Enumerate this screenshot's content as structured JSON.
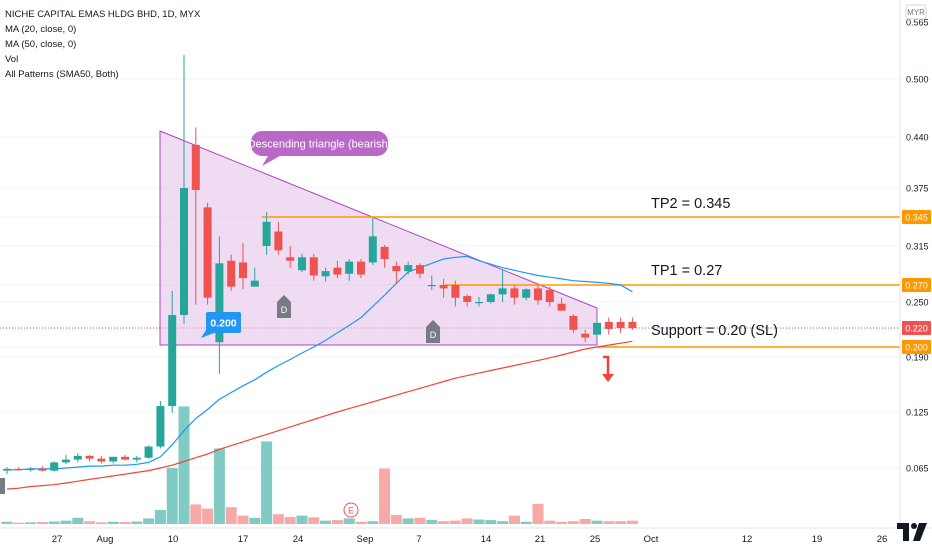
{
  "legend": {
    "title": "NICHE CAPITAL EMAS HLDG BHD, 1D, MYX",
    "ma20": "MA (20, close, 0)",
    "ma50": "MA (50, close, 0)",
    "vol": "Vol",
    "patterns": "All Patterns (SMA50, Both)"
  },
  "currency": "MYR",
  "colors": {
    "up": "#26a69a",
    "down": "#ef5350",
    "up_vol": "#80cbc4",
    "down_vol": "#f7a9a7",
    "ma20": "#2196f3",
    "ma50": "#f44336",
    "triangle_fill": "#e1bee7",
    "triangle_line": "#ab47bc",
    "level_line": "#ff9800",
    "price_tag": "#ef5350",
    "callout": "#ba68c8",
    "arrow": "#f44336"
  },
  "chart_data": {
    "type": "candlestick",
    "price_axis_ticks": [
      "0.065",
      "0.125",
      "0.190",
      "0.200",
      "0.220",
      "0.250",
      "0.270",
      "0.315",
      "0.345",
      "0.375",
      "0.440",
      "0.500",
      "0.565"
    ],
    "x_axis_labels": [
      "27",
      "Aug",
      "10",
      "17",
      "24",
      "Sep",
      "7",
      "14",
      "21",
      "25",
      "Oct",
      "12",
      "19",
      "26"
    ],
    "current_price": "0.220",
    "annotations": {
      "callout": "Descending triangle (bearish)",
      "label_low": "0.200",
      "tp2": "TP2 = 0.345",
      "tp1": "TP1 = 0.27",
      "support": "Support = 0.20 (SL)",
      "tag_tp2": "0.345",
      "tag_tp1": "0.270",
      "tag_price": "0.220",
      "tag_support": "0.200",
      "pattern_marks": [
        "D",
        "D"
      ],
      "earnings_mark": "E"
    },
    "candles": [
      {
        "o": 0.062,
        "h": 0.066,
        "l": 0.058,
        "c": 0.064
      },
      {
        "o": 0.064,
        "h": 0.066,
        "l": 0.062,
        "c": 0.063
      },
      {
        "o": 0.063,
        "h": 0.066,
        "l": 0.061,
        "c": 0.064
      },
      {
        "o": 0.064,
        "h": 0.067,
        "l": 0.061,
        "c": 0.062
      },
      {
        "o": 0.062,
        "h": 0.072,
        "l": 0.061,
        "c": 0.071
      },
      {
        "o": 0.071,
        "h": 0.079,
        "l": 0.069,
        "c": 0.074
      },
      {
        "o": 0.074,
        "h": 0.081,
        "l": 0.071,
        "c": 0.078
      },
      {
        "o": 0.078,
        "h": 0.079,
        "l": 0.072,
        "c": 0.075
      },
      {
        "o": 0.075,
        "h": 0.078,
        "l": 0.07,
        "c": 0.072
      },
      {
        "o": 0.072,
        "h": 0.077,
        "l": 0.07,
        "c": 0.077
      },
      {
        "o": 0.077,
        "h": 0.079,
        "l": 0.073,
        "c": 0.074
      },
      {
        "o": 0.074,
        "h": 0.078,
        "l": 0.071,
        "c": 0.076
      },
      {
        "o": 0.076,
        "h": 0.089,
        "l": 0.075,
        "c": 0.088
      },
      {
        "o": 0.088,
        "h": 0.138,
        "l": 0.086,
        "c": 0.132
      },
      {
        "o": 0.132,
        "h": 0.263,
        "l": 0.124,
        "c": 0.235
      },
      {
        "o": 0.235,
        "h": 0.525,
        "l": 0.225,
        "c": 0.375
      },
      {
        "o": 0.43,
        "h": 0.45,
        "l": 0.247,
        "c": 0.373
      },
      {
        "o": 0.355,
        "h": 0.36,
        "l": 0.247,
        "c": 0.255
      },
      {
        "o": 0.205,
        "h": 0.325,
        "l": 0.17,
        "c": 0.295
      },
      {
        "o": 0.298,
        "h": 0.305,
        "l": 0.263,
        "c": 0.268
      },
      {
        "o": 0.296,
        "h": 0.318,
        "l": 0.265,
        "c": 0.278
      },
      {
        "o": 0.268,
        "h": 0.29,
        "l": 0.272,
        "c": 0.275
      },
      {
        "o": 0.315,
        "h": 0.35,
        "l": 0.305,
        "c": 0.34
      },
      {
        "o": 0.33,
        "h": 0.34,
        "l": 0.305,
        "c": 0.31
      },
      {
        "o": 0.302,
        "h": 0.315,
        "l": 0.29,
        "c": 0.298
      },
      {
        "o": 0.287,
        "h": 0.306,
        "l": 0.285,
        "c": 0.302
      },
      {
        "o": 0.302,
        "h": 0.306,
        "l": 0.275,
        "c": 0.281
      },
      {
        "o": 0.28,
        "h": 0.29,
        "l": 0.274,
        "c": 0.286
      },
      {
        "o": 0.29,
        "h": 0.298,
        "l": 0.278,
        "c": 0.282
      },
      {
        "o": 0.283,
        "h": 0.3,
        "l": 0.275,
        "c": 0.297
      },
      {
        "o": 0.297,
        "h": 0.3,
        "l": 0.278,
        "c": 0.282
      },
      {
        "o": 0.296,
        "h": 0.344,
        "l": 0.293,
        "c": 0.325
      },
      {
        "o": 0.314,
        "h": 0.316,
        "l": 0.29,
        "c": 0.3
      },
      {
        "o": 0.292,
        "h": 0.297,
        "l": 0.272,
        "c": 0.286
      },
      {
        "o": 0.286,
        "h": 0.297,
        "l": 0.282,
        "c": 0.293
      },
      {
        "o": 0.293,
        "h": 0.295,
        "l": 0.278,
        "c": 0.283
      },
      {
        "o": 0.27,
        "h": 0.281,
        "l": 0.264,
        "c": 0.27
      },
      {
        "o": 0.27,
        "h": 0.277,
        "l": 0.255,
        "c": 0.266
      },
      {
        "o": 0.27,
        "h": 0.275,
        "l": 0.245,
        "c": 0.255
      },
      {
        "o": 0.257,
        "h": 0.259,
        "l": 0.245,
        "c": 0.25
      },
      {
        "o": 0.25,
        "h": 0.256,
        "l": 0.245,
        "c": 0.25
      },
      {
        "o": 0.25,
        "h": 0.26,
        "l": 0.248,
        "c": 0.259
      },
      {
        "o": 0.259,
        "h": 0.288,
        "l": 0.25,
        "c": 0.266
      },
      {
        "o": 0.266,
        "h": 0.27,
        "l": 0.247,
        "c": 0.255
      },
      {
        "o": 0.255,
        "h": 0.266,
        "l": 0.252,
        "c": 0.265
      },
      {
        "o": 0.266,
        "h": 0.27,
        "l": 0.247,
        "c": 0.252
      },
      {
        "o": 0.264,
        "h": 0.268,
        "l": 0.245,
        "c": 0.25
      },
      {
        "o": 0.248,
        "h": 0.255,
        "l": 0.24,
        "c": 0.24
      },
      {
        "o": 0.234,
        "h": 0.236,
        "l": 0.215,
        "c": 0.218
      },
      {
        "o": 0.214,
        "h": 0.218,
        "l": 0.205,
        "c": 0.21
      },
      {
        "o": 0.213,
        "h": 0.232,
        "l": 0.208,
        "c": 0.226
      },
      {
        "o": 0.227,
        "h": 0.232,
        "l": 0.213,
        "c": 0.219
      },
      {
        "o": 0.227,
        "h": 0.232,
        "l": 0.215,
        "c": 0.22
      },
      {
        "o": 0.227,
        "h": 0.232,
        "l": 0.218,
        "c": 0.22
      }
    ],
    "volume": [
      0.08,
      0.05,
      0.06,
      0.07,
      0.09,
      0.12,
      0.22,
      0.1,
      0.06,
      0.08,
      0.07,
      0.09,
      0.2,
      0.5,
      2.0,
      4.2,
      0.7,
      0.55,
      2.7,
      0.6,
      0.3,
      0.22,
      2.95,
      0.35,
      0.25,
      0.3,
      0.24,
      0.12,
      0.14,
      0.2,
      0.08,
      0.1,
      1.98,
      0.32,
      0.2,
      0.22,
      0.15,
      0.1,
      0.12,
      0.2,
      0.16,
      0.14,
      0.1,
      0.3,
      0.08,
      0.72,
      0.12,
      0.08,
      0.1,
      0.18,
      0.12,
      0.1,
      0.1,
      0.12
    ],
    "ma20": [
      0.063,
      0.063,
      0.064,
      0.064,
      0.064,
      0.065,
      0.066,
      0.067,
      0.067,
      0.068,
      0.068,
      0.069,
      0.071,
      0.077,
      0.09,
      0.105,
      0.118,
      0.128,
      0.14,
      0.148,
      0.156,
      0.163,
      0.172,
      0.18,
      0.187,
      0.194,
      0.2,
      0.207,
      0.215,
      0.223,
      0.232,
      0.245,
      0.258,
      0.272,
      0.285,
      0.29,
      0.295,
      0.3,
      0.302,
      0.303,
      0.298,
      0.294,
      0.29,
      0.287,
      0.284,
      0.281,
      0.279,
      0.277,
      0.275,
      0.274,
      0.273,
      0.272,
      0.27,
      0.262
    ],
    "ma50": [
      0.041,
      0.042,
      0.044,
      0.045,
      0.046,
      0.048,
      0.05,
      0.052,
      0.054,
      0.056,
      0.058,
      0.06,
      0.062,
      0.065,
      0.068,
      0.072,
      0.076,
      0.08,
      0.085,
      0.089,
      0.093,
      0.097,
      0.101,
      0.105,
      0.109,
      0.113,
      0.117,
      0.121,
      0.125,
      0.129,
      0.133,
      0.137,
      0.141,
      0.145,
      0.149,
      0.153,
      0.157,
      0.161,
      0.165,
      0.168,
      0.171,
      0.174,
      0.177,
      0.18,
      0.183,
      0.186,
      0.189,
      0.192,
      0.195,
      0.198,
      0.2,
      0.202,
      0.204,
      0.206
    ]
  }
}
